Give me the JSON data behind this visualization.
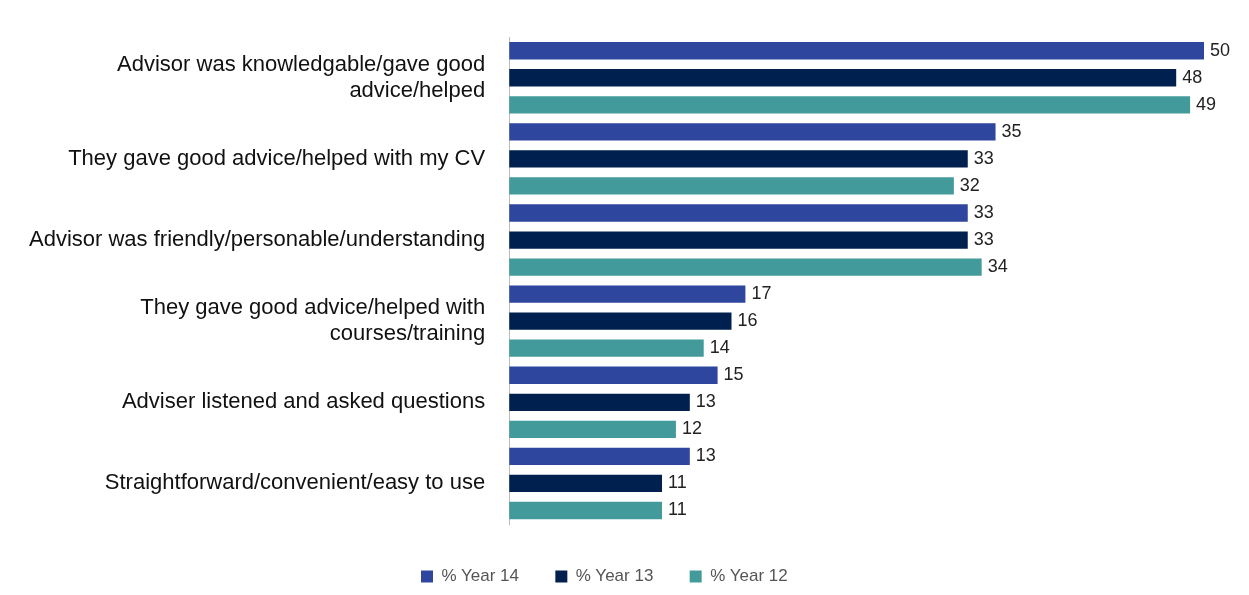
{
  "chart_data": {
    "type": "bar",
    "orientation": "horizontal",
    "categories": [
      "Advisor was knowledgable/gave good advice/helped",
      "They gave good advice/helped with my CV",
      "Advisor was friendly/personable/understanding",
      "They gave good advice/helped with courses/training",
      "Adviser listened and asked questions",
      "Straightforward/convenient/easy to use"
    ],
    "series": [
      {
        "name": "% Year 14",
        "color": "#2f469e",
        "values": [
          50,
          35,
          33,
          17,
          15,
          13
        ]
      },
      {
        "name": "% Year 13",
        "color": "#00214f",
        "values": [
          48,
          33,
          33,
          16,
          13,
          11
        ]
      },
      {
        "name": "% Year 12",
        "color": "#429a9a",
        "values": [
          49,
          32,
          34,
          14,
          12,
          11
        ]
      }
    ],
    "data_labels": true,
    "legend": "bottom",
    "grid": false
  }
}
